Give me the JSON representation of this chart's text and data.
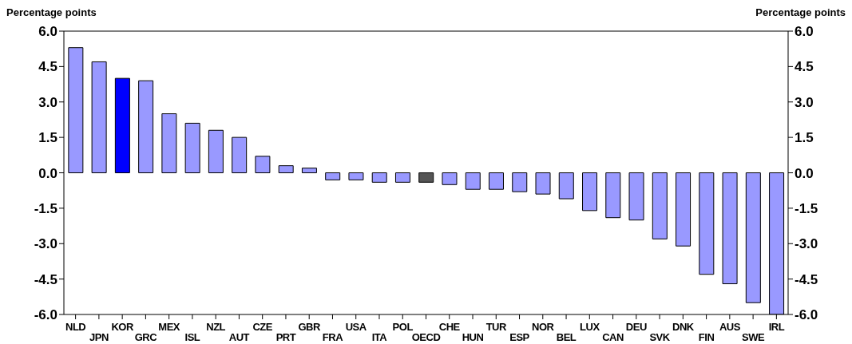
{
  "chart_data": {
    "type": "bar",
    "ylabel": "Percentage points",
    "y2label": "Percentage points",
    "categories": [
      "NLD",
      "JPN",
      "KOR",
      "GRC",
      "MEX",
      "ISL",
      "NZL",
      "AUT",
      "CZE",
      "PRT",
      "GBR",
      "FRA",
      "USA",
      "ITA",
      "POL",
      "OECD",
      "CHE",
      "HUN",
      "TUR",
      "ESP",
      "NOR",
      "BEL",
      "LUX",
      "CAN",
      "DEU",
      "SVK",
      "DNK",
      "FIN",
      "AUS",
      "SWE",
      "IRL"
    ],
    "values": [
      5.3,
      4.7,
      4.0,
      3.9,
      2.5,
      2.1,
      1.8,
      1.5,
      0.7,
      0.3,
      0.2,
      -0.3,
      -0.3,
      -0.4,
      -0.4,
      -0.4,
      -0.5,
      -0.7,
      -0.7,
      -0.8,
      -0.9,
      -1.1,
      -1.6,
      -1.9,
      -2.0,
      -2.8,
      -3.1,
      -4.3,
      -4.7,
      -5.5,
      -6.0
    ],
    "colors": [
      "#9999ff",
      "#9999ff",
      "#0000ff",
      "#9999ff",
      "#9999ff",
      "#9999ff",
      "#9999ff",
      "#9999ff",
      "#9999ff",
      "#9999ff",
      "#9999ff",
      "#9999ff",
      "#9999ff",
      "#9999ff",
      "#9999ff",
      "#555555",
      "#9999ff",
      "#9999ff",
      "#9999ff",
      "#9999ff",
      "#9999ff",
      "#9999ff",
      "#9999ff",
      "#9999ff",
      "#9999ff",
      "#9999ff",
      "#9999ff",
      "#9999ff",
      "#9999ff",
      "#9999ff",
      "#9999ff"
    ],
    "ylim": [
      -6,
      6
    ],
    "yticks": [
      {
        "value": -6,
        "label": "-6.0"
      },
      {
        "value": -4.5,
        "label": "-4.5"
      },
      {
        "value": -3,
        "label": "-3.0"
      },
      {
        "value": -1.5,
        "label": "-1.5"
      },
      {
        "value": 0,
        "label": "0.0"
      },
      {
        "value": 1.5,
        "label": "1.5"
      },
      {
        "value": 3,
        "label": "3.0"
      },
      {
        "value": 4.5,
        "label": "4.5"
      },
      {
        "value": 6,
        "label": "6.0"
      }
    ],
    "y2lim": [
      -6,
      6
    ],
    "y2ticks": [
      {
        "value": -6,
        "label": "-6.0"
      },
      {
        "value": -4.5,
        "label": "-4.5"
      },
      {
        "value": -3,
        "label": "-3.0"
      },
      {
        "value": -1.5,
        "label": "-1.5"
      },
      {
        "value": 0,
        "label": "0.0"
      },
      {
        "value": 1.5,
        "label": "1.5"
      },
      {
        "value": 3,
        "label": "3.0"
      },
      {
        "value": 4.5,
        "label": "4.5"
      },
      {
        "value": 6,
        "label": "6.0"
      }
    ],
    "grid": false,
    "legend": false
  }
}
